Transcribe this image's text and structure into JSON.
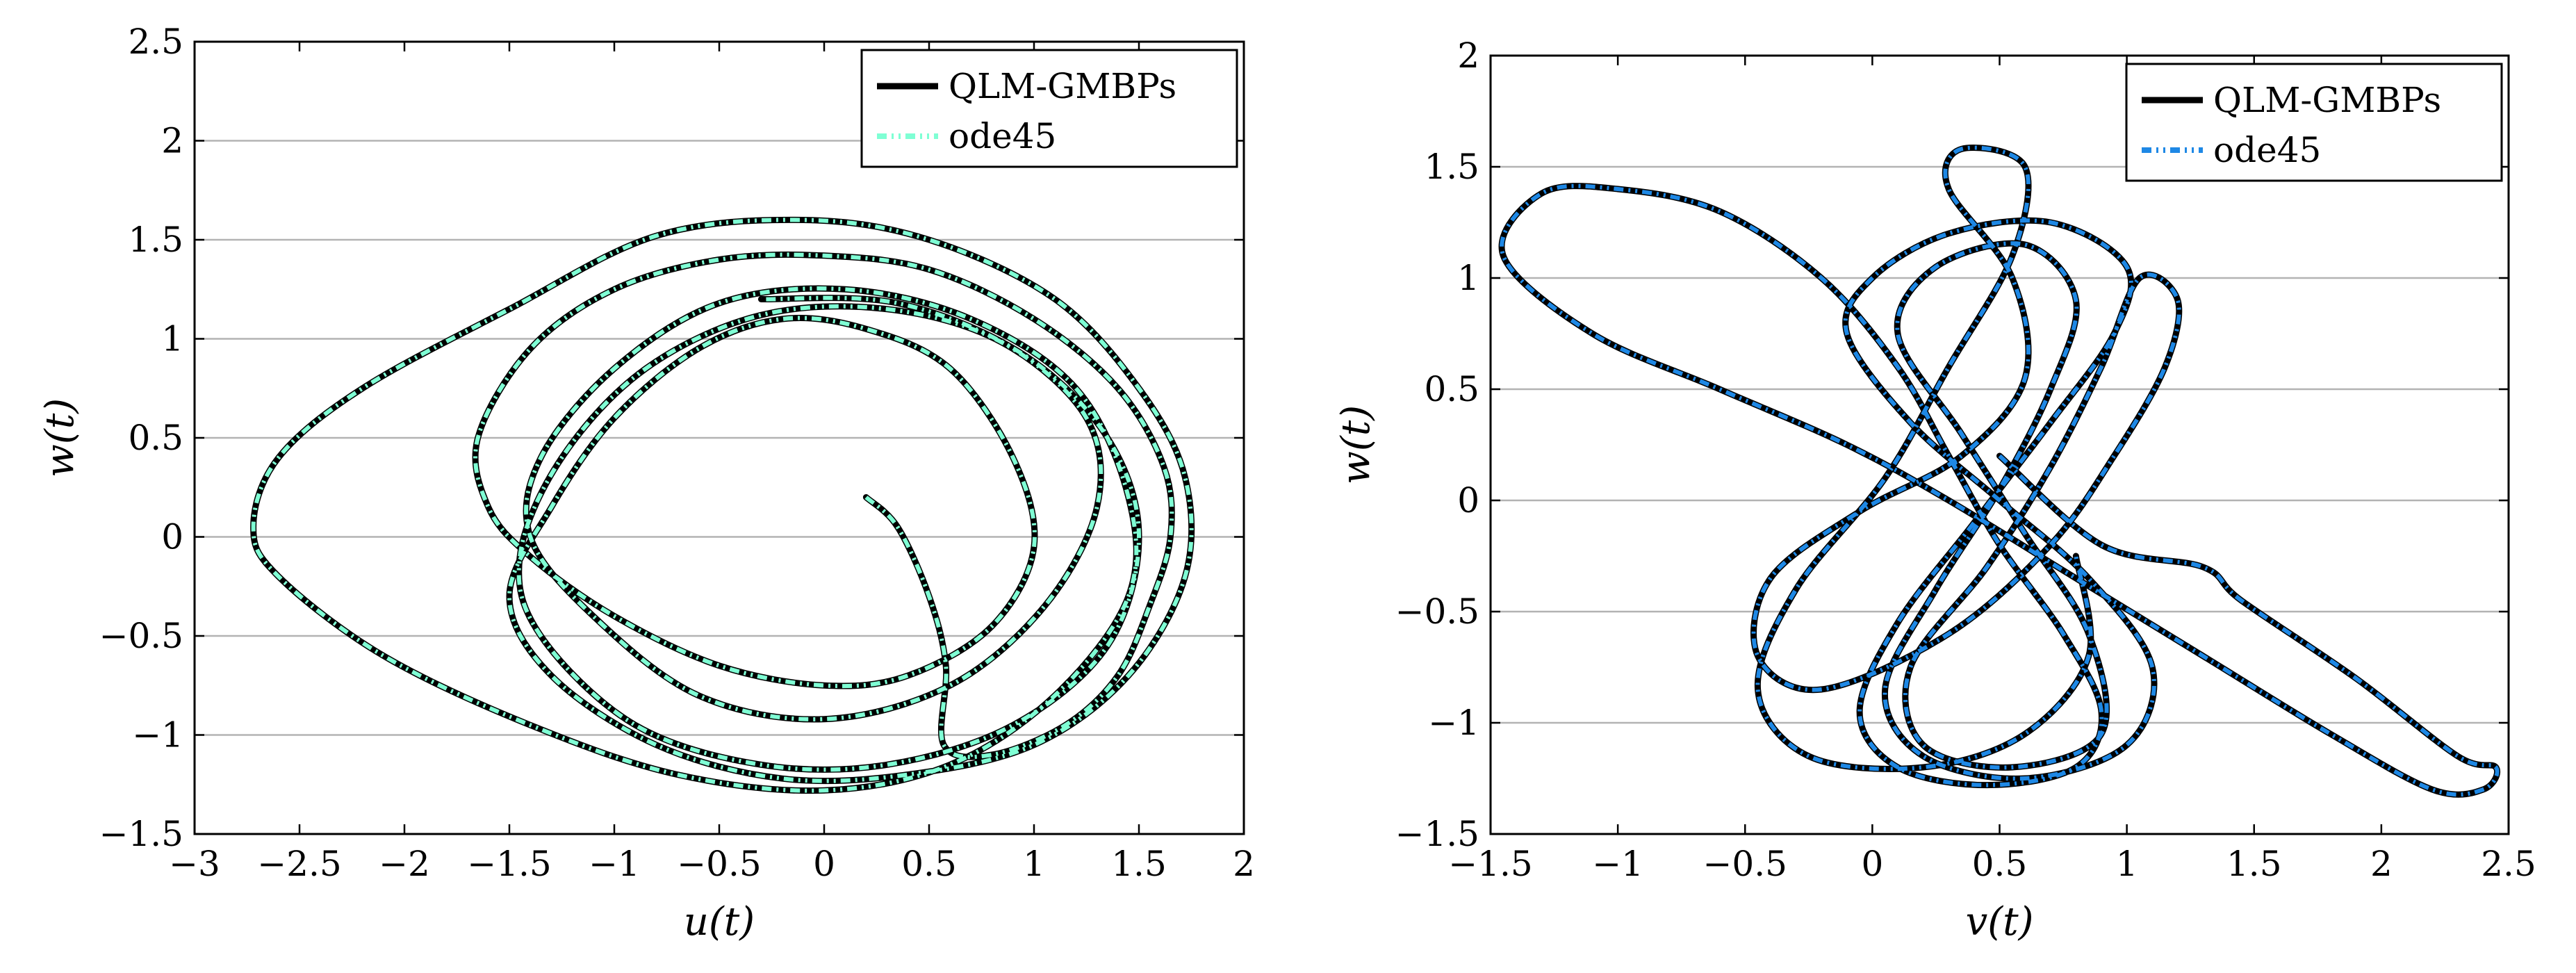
{
  "chart_data": [
    {
      "type": "line",
      "id": "left",
      "xlabel": "u(t)",
      "ylabel": "w(t)",
      "xlim": [
        -3,
        2
      ],
      "ylim": [
        -1.5,
        2.5
      ],
      "xticks": [
        -3,
        -2.5,
        -2,
        -1.5,
        -1,
        -0.5,
        0,
        0.5,
        1,
        1.5,
        2
      ],
      "yticks": [
        -1.5,
        -1,
        -0.5,
        0,
        0.5,
        1,
        1.5,
        2,
        2.5
      ],
      "xtick_labels": [
        "−3",
        "−2.5",
        "−2",
        "−1.5",
        "−1",
        "−0.5",
        "0",
        "0.5",
        "1",
        "1.5",
        "2"
      ],
      "ytick_labels": [
        "−1.5",
        "−1",
        "−0.5",
        "0",
        "0.5",
        "1",
        "1.5",
        "2",
        "2.5"
      ],
      "grid": "horizontal",
      "legend_position": "top-right",
      "series": [
        {
          "name": "QLM-GMBPs",
          "color": "#000000",
          "style": "solid"
        },
        {
          "name": "ode45",
          "color": "#7FFFD4",
          "style": "dash-dot-dot"
        }
      ],
      "trajectory": [
        [
          0.2,
          0.2
        ],
        [
          0.35,
          0.05
        ],
        [
          0.5,
          -0.3
        ],
        [
          0.58,
          -0.65
        ],
        [
          0.57,
          -1.05
        ],
        [
          0.8,
          -1.1
        ],
        [
          1.15,
          -0.95
        ],
        [
          1.4,
          -0.7
        ],
        [
          1.55,
          -0.35
        ],
        [
          1.65,
          0.0
        ],
        [
          1.62,
          0.35
        ],
        [
          1.4,
          0.75
        ],
        [
          1.0,
          1.1
        ],
        [
          0.5,
          1.35
        ],
        [
          0.0,
          1.42
        ],
        [
          -0.5,
          1.4
        ],
        [
          -1.0,
          1.25
        ],
        [
          -1.4,
          0.95
        ],
        [
          -1.65,
          0.5
        ],
        [
          -1.6,
          0.15
        ],
        [
          -1.4,
          -0.1
        ],
        [
          -1.0,
          -0.4
        ],
        [
          -0.5,
          -0.65
        ],
        [
          0.0,
          -0.75
        ],
        [
          0.4,
          -0.7
        ],
        [
          0.8,
          -0.45
        ],
        [
          1.0,
          -0.05
        ],
        [
          0.9,
          0.4
        ],
        [
          0.6,
          0.85
        ],
        [
          0.2,
          1.05
        ],
        [
          -0.2,
          1.1
        ],
        [
          -0.6,
          0.95
        ],
        [
          -1.0,
          0.6
        ],
        [
          -1.3,
          0.15
        ],
        [
          -1.5,
          -0.3
        ],
        [
          -1.3,
          -0.7
        ],
        [
          -0.8,
          -1.05
        ],
        [
          -0.2,
          -1.22
        ],
        [
          0.4,
          -1.2
        ],
        [
          1.0,
          -1.05
        ],
        [
          1.45,
          -0.7
        ],
        [
          1.72,
          -0.2
        ],
        [
          1.72,
          0.3
        ],
        [
          1.5,
          0.75
        ],
        [
          1.1,
          1.2
        ],
        [
          0.5,
          1.5
        ],
        [
          -0.1,
          1.6
        ],
        [
          -0.8,
          1.52
        ],
        [
          -1.5,
          1.15
        ],
        [
          -2.2,
          0.75
        ],
        [
          -2.6,
          0.4
        ],
        [
          -2.72,
          0.05
        ],
        [
          -2.6,
          -0.2
        ],
        [
          -2.1,
          -0.6
        ],
        [
          -1.4,
          -0.95
        ],
        [
          -0.7,
          -1.2
        ],
        [
          0.0,
          -1.28
        ],
        [
          0.6,
          -1.15
        ],
        [
          1.1,
          -0.8
        ],
        [
          1.45,
          -0.3
        ],
        [
          1.45,
          0.2
        ],
        [
          1.2,
          0.75
        ],
        [
          0.7,
          1.1
        ],
        [
          0.1,
          1.25
        ],
        [
          -0.5,
          1.18
        ],
        [
          -1.0,
          0.85
        ],
        [
          -1.35,
          0.4
        ],
        [
          -1.4,
          0.0
        ],
        [
          -1.1,
          -0.4
        ],
        [
          -0.6,
          -0.8
        ],
        [
          0.0,
          -0.92
        ],
        [
          0.6,
          -0.75
        ],
        [
          1.05,
          -0.35
        ],
        [
          1.3,
          0.15
        ],
        [
          1.25,
          0.6
        ],
        [
          0.85,
          0.98
        ],
        [
          0.3,
          1.15
        ],
        [
          -0.3,
          1.12
        ],
        [
          -0.85,
          0.85
        ],
        [
          -1.25,
          0.4
        ],
        [
          -1.45,
          -0.1
        ],
        [
          -1.35,
          -0.5
        ],
        [
          -0.9,
          -0.95
        ],
        [
          -0.3,
          -1.15
        ],
        [
          0.3,
          -1.15
        ],
        [
          0.9,
          -0.95
        ],
        [
          1.35,
          -0.55
        ],
        [
          1.5,
          0.0
        ],
        [
          1.35,
          0.5
        ],
        [
          0.95,
          0.92
        ],
        [
          0.35,
          1.18
        ],
        [
          -0.3,
          1.2
        ]
      ]
    },
    {
      "type": "line",
      "id": "right",
      "xlabel": "v(t)",
      "ylabel": "w(t)",
      "xlim": [
        -1.5,
        2.5
      ],
      "ylim": [
        -1.5,
        2
      ],
      "xticks": [
        -1.5,
        -1,
        -0.5,
        0,
        0.5,
        1,
        1.5,
        2,
        2.5
      ],
      "yticks": [
        -1.5,
        -1,
        -0.5,
        0,
        0.5,
        1,
        1.5,
        2
      ],
      "xtick_labels": [
        "−1.5",
        "−1",
        "−0.5",
        "0",
        "0.5",
        "1",
        "1.5",
        "2",
        "2.5"
      ],
      "ytick_labels": [
        "−1.5",
        "−1",
        "−0.5",
        "0",
        "0.5",
        "1",
        "1.5",
        "2"
      ],
      "grid": "horizontal",
      "legend_position": "top-right",
      "series": [
        {
          "name": "QLM-GMBPs",
          "color": "#000000",
          "style": "solid"
        },
        {
          "name": "ode45",
          "color": "#1E88E5",
          "style": "dash-dot-dot"
        }
      ],
      "trajectory": [
        [
          0.5,
          0.2
        ],
        [
          0.9,
          -0.2
        ],
        [
          1.3,
          -0.3
        ],
        [
          1.45,
          -0.45
        ],
        [
          1.9,
          -0.8
        ],
        [
          2.3,
          -1.15
        ],
        [
          2.45,
          -1.2
        ],
        [
          2.4,
          -1.3
        ],
        [
          2.2,
          -1.3
        ],
        [
          1.8,
          -1.05
        ],
        [
          1.3,
          -0.7
        ],
        [
          0.8,
          -0.35
        ],
        [
          0.3,
          0.0
        ],
        [
          -0.1,
          0.25
        ],
        [
          -0.6,
          0.5
        ],
        [
          -1.1,
          0.75
        ],
        [
          -1.45,
          1.1
        ],
        [
          -1.3,
          1.38
        ],
        [
          -1.0,
          1.4
        ],
        [
          -0.6,
          1.3
        ],
        [
          -0.2,
          1.0
        ],
        [
          0.1,
          0.6
        ],
        [
          0.3,
          0.2
        ],
        [
          0.5,
          -0.2
        ],
        [
          0.75,
          -0.6
        ],
        [
          0.9,
          -0.95
        ],
        [
          0.8,
          -1.2
        ],
        [
          0.45,
          -1.28
        ],
        [
          0.1,
          -1.2
        ],
        [
          -0.05,
          -0.95
        ],
        [
          0.1,
          -0.55
        ],
        [
          0.4,
          -0.1
        ],
        [
          0.7,
          0.35
        ],
        [
          0.95,
          0.75
        ],
        [
          1.0,
          1.05
        ],
        [
          0.7,
          1.25
        ],
        [
          0.3,
          1.2
        ],
        [
          0.0,
          1.0
        ],
        [
          -0.1,
          0.75
        ],
        [
          0.15,
          0.35
        ],
        [
          0.5,
          0.0
        ],
        [
          0.85,
          -0.35
        ],
        [
          1.1,
          -0.75
        ],
        [
          1.0,
          -1.1
        ],
        [
          0.6,
          -1.25
        ],
        [
          0.2,
          -1.15
        ],
        [
          0.05,
          -0.85
        ],
        [
          0.25,
          -0.4
        ],
        [
          0.5,
          0.05
        ],
        [
          0.7,
          0.5
        ],
        [
          0.8,
          0.9
        ],
        [
          0.6,
          1.15
        ],
        [
          0.25,
          1.05
        ],
        [
          0.1,
          0.75
        ],
        [
          0.35,
          0.3
        ],
        [
          0.6,
          -0.15
        ],
        [
          0.85,
          -0.6
        ],
        [
          0.9,
          -1.05
        ],
        [
          0.55,
          -1.2
        ],
        [
          0.2,
          -1.1
        ],
        [
          0.15,
          -0.75
        ],
        [
          0.45,
          -0.3
        ],
        [
          0.7,
          0.15
        ],
        [
          0.9,
          0.6
        ],
        [
          1.05,
          1.0
        ],
        [
          1.2,
          0.9
        ],
        [
          1.15,
          0.6
        ],
        [
          0.95,
          0.2
        ],
        [
          0.7,
          -0.2
        ],
        [
          0.3,
          -0.6
        ],
        [
          -0.2,
          -0.85
        ],
        [
          -0.45,
          -0.7
        ],
        [
          -0.4,
          -0.35
        ],
        [
          -0.05,
          -0.05
        ],
        [
          0.35,
          0.2
        ],
        [
          0.6,
          0.55
        ],
        [
          0.55,
          1.0
        ],
        [
          0.3,
          1.4
        ],
        [
          0.35,
          1.58
        ],
        [
          0.6,
          1.5
        ],
        [
          0.55,
          1.1
        ],
        [
          0.3,
          0.6
        ],
        [
          0.05,
          0.1
        ],
        [
          -0.3,
          -0.4
        ],
        [
          -0.45,
          -0.85
        ],
        [
          -0.25,
          -1.15
        ],
        [
          0.2,
          -1.2
        ],
        [
          0.6,
          -1.05
        ],
        [
          0.85,
          -0.7
        ],
        [
          0.8,
          -0.25
        ]
      ]
    }
  ]
}
